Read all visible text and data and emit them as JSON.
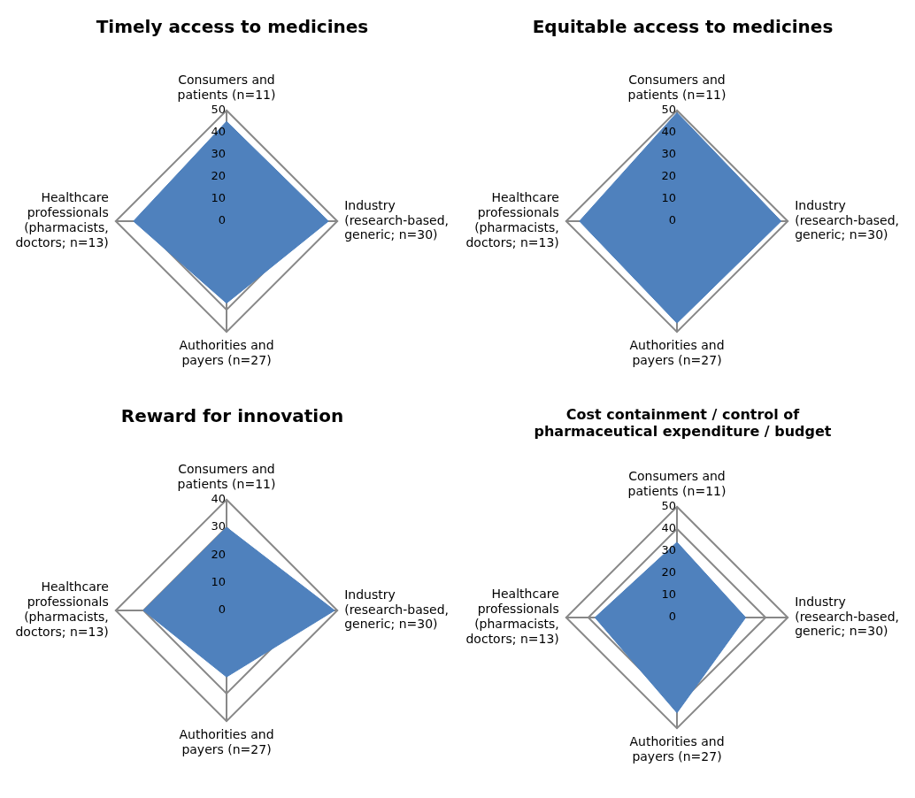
{
  "chart_data": [
    {
      "type": "radar",
      "title": "Timely access to medicines",
      "categories": [
        "Consumers and patients (n=11)",
        "Industry (research-based, generic; n=30)",
        "Authorities and payers (n=27)",
        "Healthcare professionals (pharmacists, doctors; n=13)"
      ],
      "series": [
        {
          "color": "#4f81bd",
          "values": [
            45,
            46,
            37,
            42
          ]
        }
      ],
      "ylim": [
        0,
        50
      ],
      "yticks": [
        0,
        10,
        20,
        30,
        40,
        50
      ],
      "grid": true
    },
    {
      "type": "radar",
      "title": "Equitable access to medicines",
      "categories": [
        "Consumers and patients (n=11)",
        "Industry (research-based, generic; n=30)",
        "Authorities and payers (n=27)",
        "Healthcare professionals (pharmacists, doctors; n=13)"
      ],
      "series": [
        {
          "color": "#4f81bd",
          "values": [
            49,
            47,
            46,
            44
          ]
        }
      ],
      "ylim": [
        0,
        50
      ],
      "yticks": [
        0,
        10,
        20,
        30,
        40,
        50
      ],
      "grid": true
    },
    {
      "type": "radar",
      "title": "Reward for innovation",
      "categories": [
        "Consumers and patients (n=11)",
        "Industry (research-based, generic; n=30)",
        "Authorities and payers (n=27)",
        "Healthcare professionals (pharmacists, doctors; n=13)"
      ],
      "series": [
        {
          "color": "#4f81bd",
          "values": [
            30,
            39,
            24,
            30
          ]
        }
      ],
      "ylim": [
        0,
        40
      ],
      "yticks": [
        0,
        10,
        20,
        30,
        40
      ],
      "grid": true
    },
    {
      "type": "radar",
      "title": "Cost containment / control of pharmaceutical expenditure / budget",
      "categories": [
        "Consumers and patients (n=11)",
        "Industry (research-based, generic; n=30)",
        "Authorities and payers (n=27)",
        "Healthcare professionals (pharmacists, doctors; n=13)"
      ],
      "series": [
        {
          "color": "#4f81bd",
          "values": [
            34,
            31,
            43,
            37
          ]
        }
      ],
      "ylim": [
        0,
        50
      ],
      "yticks": [
        0,
        10,
        20,
        30,
        40,
        50
      ],
      "grid": true
    }
  ]
}
